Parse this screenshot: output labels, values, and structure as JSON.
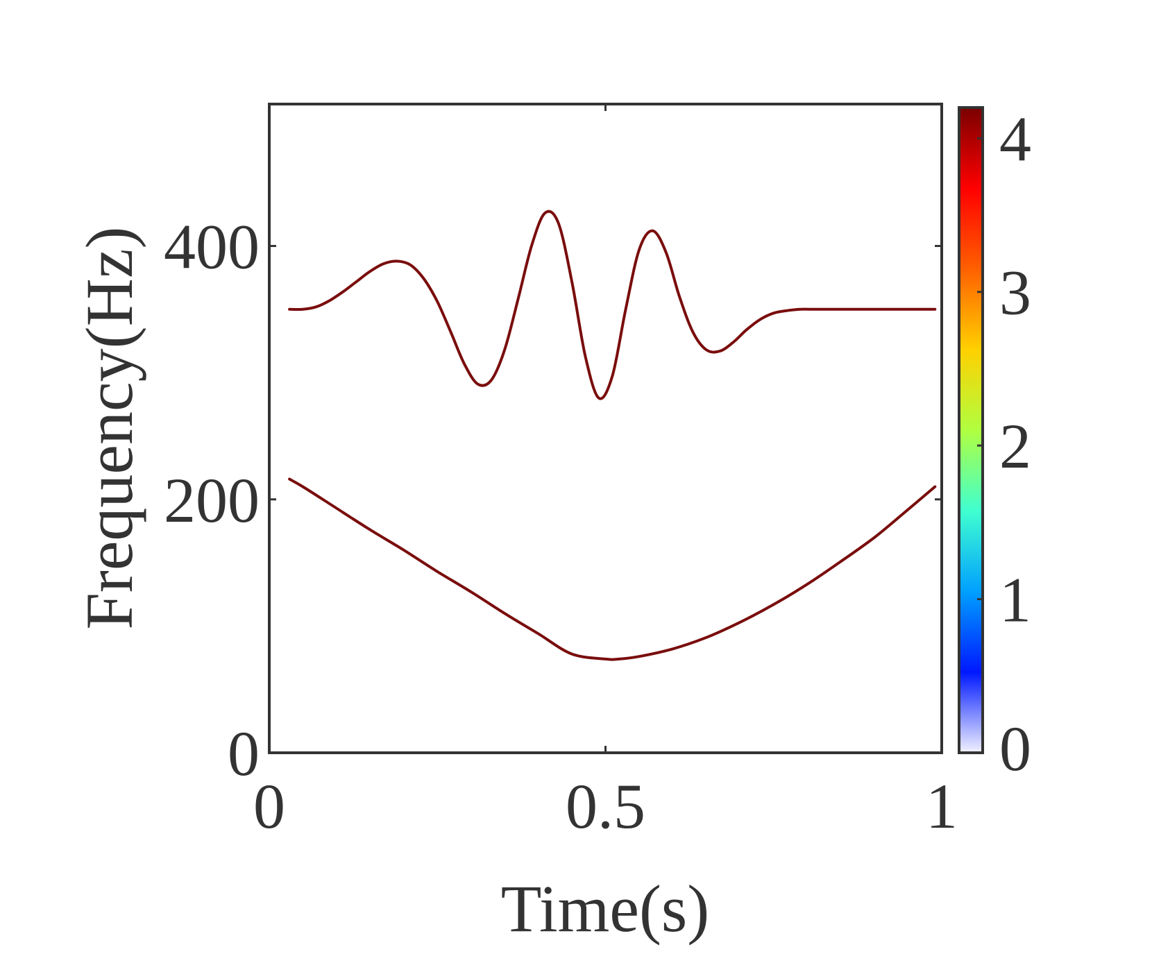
{
  "chart_data": {
    "type": "line",
    "title": "",
    "xlabel": "Time(s)",
    "ylabel": "Frequency(Hz)",
    "xlim": [
      0,
      1
    ],
    "ylim": [
      0,
      512
    ],
    "xticks": [
      0,
      0.5,
      1
    ],
    "xtick_labels": [
      "0",
      "0.5",
      "1"
    ],
    "yticks": [
      0,
      200,
      400
    ],
    "ytick_labels": [
      "0",
      "200",
      "400"
    ],
    "grid": false,
    "colorbar": {
      "range": [
        0,
        4.2
      ],
      "ticks": [
        0,
        1,
        2,
        3,
        4
      ],
      "tick_labels": [
        "0",
        "1",
        "2",
        "3",
        "4"
      ],
      "colormap": [
        "#f2f2ff",
        "#0018ff",
        "#00a0ff",
        "#40ffd0",
        "#b0ff40",
        "#ffd000",
        "#ff6000",
        "#ff0000",
        "#7a0000"
      ]
    },
    "line_color": "#7a0d0d",
    "series": [
      {
        "x": [
          0.03,
          0.05,
          0.07,
          0.09,
          0.11,
          0.13,
          0.15,
          0.17,
          0.19,
          0.21,
          0.23,
          0.25,
          0.27,
          0.29,
          0.31,
          0.33,
          0.35,
          0.37,
          0.39,
          0.41,
          0.43,
          0.45,
          0.47,
          0.49,
          0.51,
          0.53,
          0.55,
          0.57,
          0.59,
          0.61,
          0.63,
          0.65,
          0.67,
          0.69,
          0.71,
          0.73,
          0.75,
          0.77,
          0.79,
          0.81,
          0.83,
          0.85,
          0.87,
          0.89,
          0.91,
          0.93,
          0.95,
          0.97,
          0.99
        ],
        "values": [
          350,
          350,
          352,
          357,
          364,
          372,
          380,
          386,
          388,
          385,
          374,
          356,
          332,
          307,
          291,
          294,
          318,
          358,
          400,
          426,
          418,
          372,
          313,
          280,
          297,
          350,
          397,
          412,
          395,
          360,
          332,
          318,
          317,
          324,
          334,
          342,
          347,
          349,
          350,
          350,
          350,
          350,
          350,
          350,
          350,
          350,
          350,
          350,
          350
        ]
      },
      {
        "x": [
          0.03,
          0.05,
          0.1,
          0.15,
          0.2,
          0.25,
          0.3,
          0.35,
          0.4,
          0.45,
          0.5,
          0.52,
          0.55,
          0.6,
          0.65,
          0.7,
          0.75,
          0.8,
          0.85,
          0.9,
          0.95,
          0.99
        ],
        "values": [
          216,
          210,
          193,
          176,
          160,
          143,
          127,
          110,
          94,
          78,
          74,
          74,
          76,
          82,
          91,
          103,
          117,
          133,
          151,
          170,
          192,
          210
        ]
      }
    ]
  }
}
